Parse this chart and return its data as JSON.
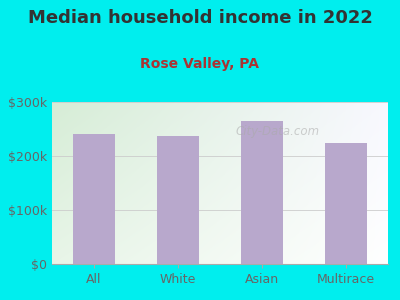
{
  "title": "Median household income in 2022",
  "subtitle": "Rose Valley, PA",
  "categories": [
    "All",
    "White",
    "Asian",
    "Multirace"
  ],
  "values": [
    240000,
    237000,
    265000,
    225000
  ],
  "bar_color": "#b8a8cc",
  "background_color": "#00EEEE",
  "plot_bg_left": "#d6edd6",
  "plot_bg_right": "#f8f8ff",
  "title_color": "#333333",
  "subtitle_color": "#aa3333",
  "tick_color": "#666666",
  "ylim": [
    0,
    300000
  ],
  "yticks": [
    0,
    100000,
    200000,
    300000
  ],
  "ytick_labels": [
    "$0",
    "$100k",
    "$200k",
    "$300k"
  ],
  "watermark": "City-Data.com",
  "title_fontsize": 13,
  "subtitle_fontsize": 10,
  "tick_fontsize": 9
}
